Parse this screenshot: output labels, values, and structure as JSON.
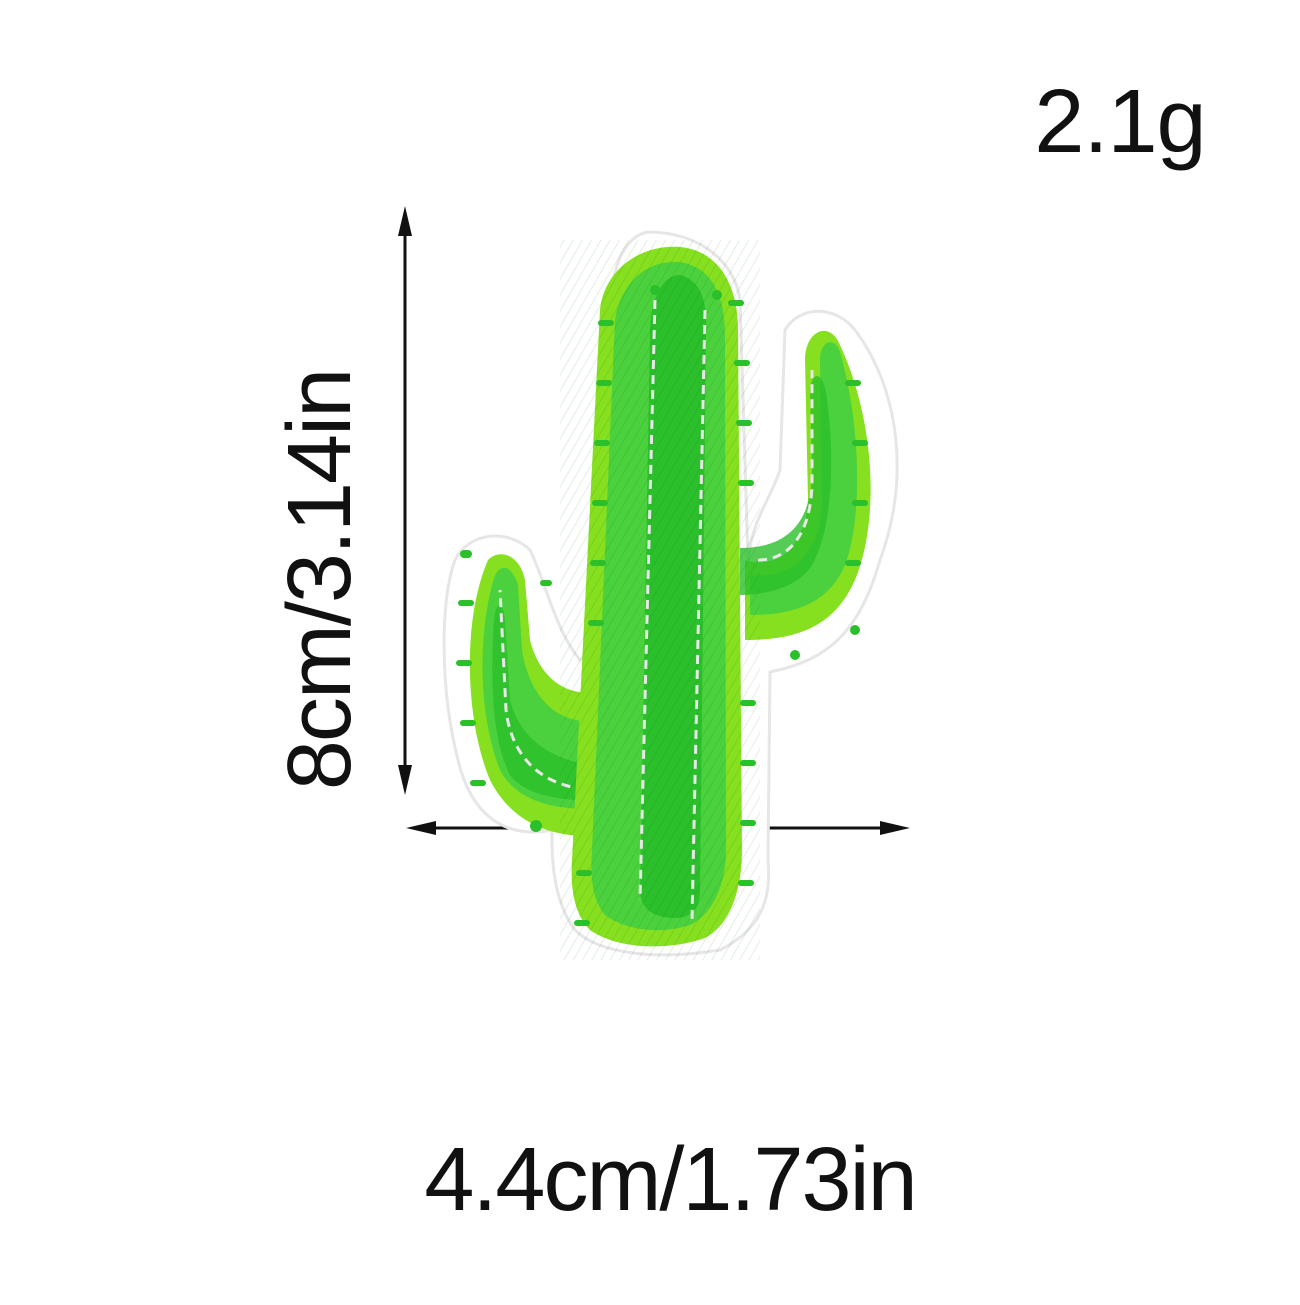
{
  "product": {
    "weight": "2.1g",
    "height_label": "8cm/3.14in",
    "width_label": "4.4cm/1.73in"
  },
  "colors": {
    "text": "#111111",
    "cactus_dark": "#2bbf2b",
    "cactus_mid": "#4bd13d",
    "cactus_light": "#86e01f",
    "stitch": "#e8e8e8",
    "backing": "#ffffff",
    "backing_edge": "#e6e6e6"
  },
  "icons": {
    "arrow": "double-headed-arrow",
    "patch": "cactus-embroidered-patch"
  }
}
